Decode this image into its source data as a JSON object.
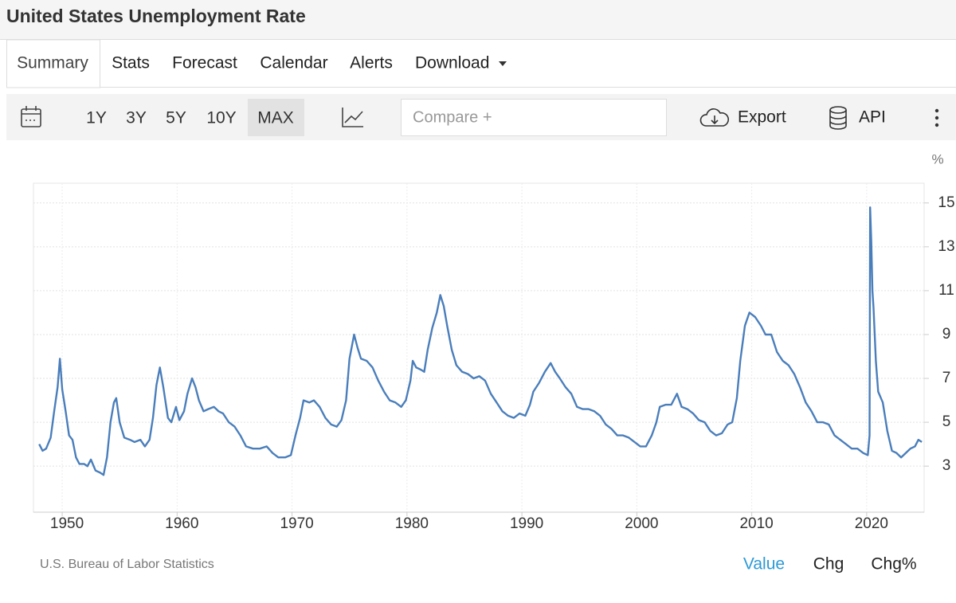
{
  "header": {
    "title": "United States Unemployment Rate"
  },
  "tabs": [
    "Summary",
    "Stats",
    "Forecast",
    "Calendar",
    "Alerts",
    "Download"
  ],
  "toolbar": {
    "ranges": [
      "1Y",
      "3Y",
      "5Y",
      "10Y",
      "MAX"
    ],
    "compare": "Compare +",
    "export": "Export",
    "api": "API"
  },
  "chart_data": {
    "type": "line",
    "unit": "%",
    "color": "#4a7ebb",
    "x": [
      1948.0,
      1948.3,
      1948.6,
      1949.0,
      1949.3,
      1949.6,
      1949.8,
      1950.0,
      1950.3,
      1950.6,
      1950.9,
      1951.2,
      1951.5,
      1951.9,
      1952.2,
      1952.5,
      1952.9,
      1953.3,
      1953.6,
      1953.9,
      1954.2,
      1954.5,
      1954.7,
      1955.0,
      1955.4,
      1955.9,
      1956.3,
      1956.8,
      1957.2,
      1957.6,
      1957.9,
      1958.2,
      1958.5,
      1958.8,
      1959.2,
      1959.5,
      1959.9,
      1960.2,
      1960.6,
      1960.9,
      1961.3,
      1961.6,
      1961.9,
      1962.3,
      1962.7,
      1963.2,
      1963.6,
      1964.0,
      1964.5,
      1965.0,
      1965.5,
      1966.0,
      1966.6,
      1967.2,
      1967.8,
      1968.3,
      1968.8,
      1969.4,
      1969.9,
      1970.3,
      1970.7,
      1971.0,
      1971.5,
      1971.9,
      1972.4,
      1972.9,
      1973.4,
      1973.9,
      1974.3,
      1974.7,
      1975.0,
      1975.4,
      1975.7,
      1976.0,
      1976.5,
      1977.0,
      1977.5,
      1978.0,
      1978.5,
      1979.0,
      1979.5,
      1979.9,
      1980.3,
      1980.5,
      1980.8,
      1981.2,
      1981.5,
      1981.8,
      1982.2,
      1982.6,
      1982.9,
      1983.2,
      1983.5,
      1983.9,
      1984.3,
      1984.8,
      1985.3,
      1985.8,
      1986.3,
      1986.8,
      1987.3,
      1987.8,
      1988.3,
      1988.8,
      1989.3,
      1989.8,
      1990.3,
      1990.7,
      1991.0,
      1991.5,
      1992.0,
      1992.5,
      1992.9,
      1993.3,
      1993.8,
      1994.3,
      1994.8,
      1995.3,
      1995.8,
      1996.3,
      1996.8,
      1997.3,
      1997.8,
      1998.3,
      1998.8,
      1999.3,
      1999.8,
      2000.3,
      2000.8,
      2001.3,
      2001.7,
      2002.0,
      2002.5,
      2003.0,
      2003.5,
      2003.9,
      2004.4,
      2004.9,
      2005.4,
      2005.9,
      2006.4,
      2006.9,
      2007.4,
      2007.9,
      2008.3,
      2008.7,
      2009.0,
      2009.4,
      2009.8,
      2010.3,
      2010.8,
      2011.2,
      2011.7,
      2012.2,
      2012.7,
      2013.2,
      2013.7,
      2014.2,
      2014.7,
      2015.2,
      2015.7,
      2016.2,
      2016.7,
      2017.2,
      2017.7,
      2018.2,
      2018.7,
      2019.2,
      2019.7,
      2020.1,
      2020.25,
      2020.3,
      2020.4,
      2020.5,
      2020.6,
      2020.8,
      2021.0,
      2021.4,
      2021.8,
      2022.2,
      2022.6,
      2023.0,
      2023.4,
      2023.8,
      2024.2,
      2024.5,
      2024.8
    ],
    "values": [
      4.0,
      3.7,
      3.8,
      4.3,
      5.5,
      6.6,
      7.9,
      6.5,
      5.5,
      4.4,
      4.2,
      3.4,
      3.1,
      3.1,
      3.0,
      3.3,
      2.8,
      2.7,
      2.6,
      3.4,
      5.0,
      5.9,
      6.1,
      5.0,
      4.3,
      4.2,
      4.1,
      4.2,
      3.9,
      4.2,
      5.2,
      6.7,
      7.5,
      6.6,
      5.2,
      5.0,
      5.7,
      5.1,
      5.5,
      6.3,
      7.0,
      6.6,
      6.0,
      5.5,
      5.6,
      5.7,
      5.5,
      5.4,
      5.0,
      4.8,
      4.4,
      3.9,
      3.8,
      3.8,
      3.9,
      3.6,
      3.4,
      3.4,
      3.5,
      4.4,
      5.2,
      6.0,
      5.9,
      6.0,
      5.7,
      5.2,
      4.9,
      4.8,
      5.1,
      6.0,
      7.9,
      9.0,
      8.4,
      7.9,
      7.8,
      7.5,
      6.9,
      6.4,
      6.0,
      5.9,
      5.7,
      6.0,
      6.9,
      7.8,
      7.5,
      7.4,
      7.3,
      8.3,
      9.3,
      10.0,
      10.8,
      10.3,
      9.4,
      8.3,
      7.6,
      7.3,
      7.2,
      7.0,
      7.1,
      6.9,
      6.3,
      5.9,
      5.5,
      5.3,
      5.2,
      5.4,
      5.3,
      5.8,
      6.4,
      6.8,
      7.3,
      7.7,
      7.3,
      7.0,
      6.6,
      6.3,
      5.7,
      5.6,
      5.6,
      5.5,
      5.3,
      4.9,
      4.7,
      4.4,
      4.4,
      4.3,
      4.1,
      3.9,
      3.9,
      4.4,
      5.0,
      5.7,
      5.8,
      5.8,
      6.3,
      5.7,
      5.6,
      5.4,
      5.1,
      5.0,
      4.6,
      4.4,
      4.5,
      4.9,
      5.0,
      6.1,
      7.8,
      9.4,
      10.0,
      9.8,
      9.4,
      9.0,
      9.0,
      8.2,
      7.8,
      7.6,
      7.2,
      6.6,
      5.9,
      5.5,
      5.0,
      5.0,
      4.9,
      4.4,
      4.2,
      4.0,
      3.8,
      3.8,
      3.6,
      3.5,
      4.4,
      14.8,
      13.3,
      11.0,
      10.2,
      7.8,
      6.4,
      5.9,
      4.6,
      3.7,
      3.6,
      3.4,
      3.6,
      3.8,
      3.9,
      4.2,
      4.1
    ],
    "xlim": [
      1947.5,
      2025
    ],
    "xticks": [
      1950,
      1960,
      1970,
      1980,
      1990,
      2000,
      2010,
      2020
    ],
    "ylim": [
      0.9,
      15.9
    ],
    "yticks": [
      3,
      5,
      7,
      9,
      11,
      13,
      15
    ],
    "grid": true
  },
  "footer": {
    "source": "U.S. Bureau of Labor Statistics",
    "views": [
      "Value",
      "Chg",
      "Chg%"
    ]
  }
}
